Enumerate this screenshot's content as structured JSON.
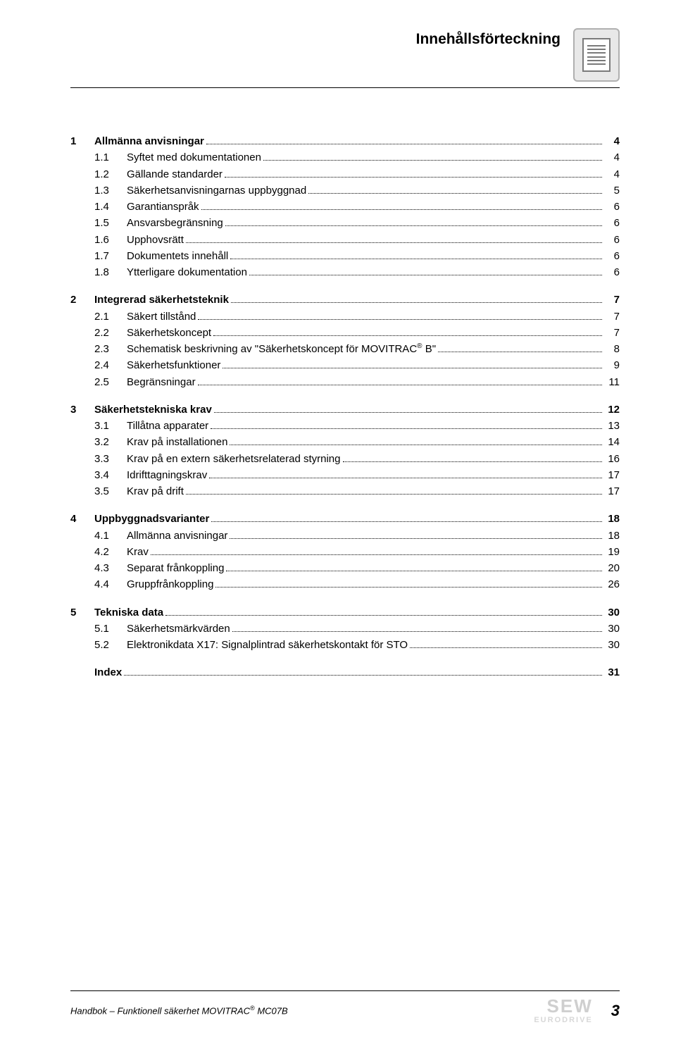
{
  "header": {
    "title": "Innehållsförteckning"
  },
  "toc": {
    "blocks": [
      {
        "head": {
          "num": "1",
          "label": "Allmänna anvisningar",
          "page": "4"
        },
        "items": [
          {
            "num": "1.1",
            "label": "Syftet med dokumentationen",
            "page": "4"
          },
          {
            "num": "1.2",
            "label": "Gällande standarder",
            "page": "4"
          },
          {
            "num": "1.3",
            "label": "Säkerhetsanvisningarnas uppbyggnad",
            "page": "5"
          },
          {
            "num": "1.4",
            "label": "Garantianspråk",
            "page": "6"
          },
          {
            "num": "1.5",
            "label": "Ansvarsbegränsning",
            "page": "6"
          },
          {
            "num": "1.6",
            "label": "Upphovsrätt",
            "page": "6"
          },
          {
            "num": "1.7",
            "label": "Dokumentets innehåll",
            "page": "6"
          },
          {
            "num": "1.8",
            "label": "Ytterligare dokumentation",
            "page": "6"
          }
        ]
      },
      {
        "head": {
          "num": "2",
          "label": "Integrerad säkerhetsteknik",
          "page": "7"
        },
        "items": [
          {
            "num": "2.1",
            "label": "Säkert tillstånd",
            "page": "7"
          },
          {
            "num": "2.2",
            "label": "Säkerhetskoncept",
            "page": "7"
          },
          {
            "num": "2.3",
            "label_pre": "Schematisk beskrivning av \"Säkerhetskoncept för MOVITRAC",
            "label_sup": "®",
            "label_post": " B\"",
            "page": "8"
          },
          {
            "num": "2.4",
            "label": "Säkerhetsfunktioner",
            "page": "9"
          },
          {
            "num": "2.5",
            "label": "Begränsningar",
            "page": "11"
          }
        ]
      },
      {
        "head": {
          "num": "3",
          "label": "Säkerhetstekniska krav",
          "page": "12"
        },
        "items": [
          {
            "num": "3.1",
            "label": "Tillåtna apparater",
            "page": "13"
          },
          {
            "num": "3.2",
            "label": "Krav på installationen",
            "page": "14"
          },
          {
            "num": "3.3",
            "label": "Krav på en extern säkerhetsrelaterad styrning",
            "page": "16"
          },
          {
            "num": "3.4",
            "label": "Idrifttagningskrav",
            "page": "17"
          },
          {
            "num": "3.5",
            "label": "Krav på drift",
            "page": "17"
          }
        ]
      },
      {
        "head": {
          "num": "4",
          "label": "Uppbyggnadsvarianter",
          "page": "18"
        },
        "items": [
          {
            "num": "4.1",
            "label": "Allmänna anvisningar",
            "page": "18"
          },
          {
            "num": "4.2",
            "label": "Krav",
            "page": "19"
          },
          {
            "num": "4.3",
            "label": "Separat frånkoppling",
            "page": "20"
          },
          {
            "num": "4.4",
            "label": "Gruppfrånkoppling",
            "page": "26"
          }
        ]
      },
      {
        "head": {
          "num": "5",
          "label": "Tekniska data",
          "page": "30"
        },
        "items": [
          {
            "num": "5.1",
            "label": "Säkerhetsmärkvärden",
            "page": "30"
          },
          {
            "num": "5.2",
            "label": "Elektronikdata X17: Signalplintrad säkerhetskontakt för STO",
            "page": "30"
          }
        ]
      },
      {
        "index": {
          "label": "Index",
          "page": "31"
        }
      }
    ]
  },
  "footer": {
    "left_pre": "Handbok – Funktionell säkerhet MOVITRAC",
    "left_sup": "®",
    "left_post": " MC07B",
    "logo_top": "SEW",
    "logo_bottom": "EURODRIVE",
    "page_number": "3"
  }
}
